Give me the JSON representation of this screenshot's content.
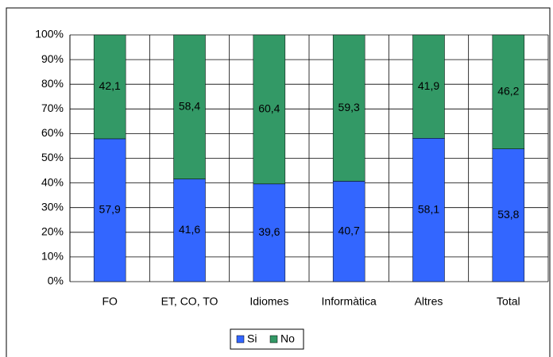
{
  "chart_data": {
    "type": "stacked_bar_100",
    "categories": [
      "FO",
      "ET, CO, TO",
      "Idiomes",
      "Informàtica",
      "Altres",
      "Total"
    ],
    "series": [
      {
        "name": "Si",
        "color": "#3366ff",
        "values": [
          57.9,
          41.6,
          39.6,
          40.7,
          58.1,
          53.8
        ],
        "value_labels": [
          "57,9",
          "41,6",
          "39,6",
          "40,7",
          "58,1",
          "53,8"
        ]
      },
      {
        "name": "No",
        "color": "#339966",
        "values": [
          42.1,
          58.4,
          60.4,
          59.3,
          41.9,
          46.2
        ],
        "value_labels": [
          "42,1",
          "58,4",
          "60,4",
          "59,3",
          "41,9",
          "46,2"
        ]
      }
    ],
    "ylim": [
      0,
      100
    ],
    "yticks": [
      {
        "value": 0,
        "label": "0%"
      },
      {
        "value": 10,
        "label": "10%"
      },
      {
        "value": 20,
        "label": "20%"
      },
      {
        "value": 30,
        "label": "30%"
      },
      {
        "value": 40,
        "label": "40%"
      },
      {
        "value": 50,
        "label": "50%"
      },
      {
        "value": 60,
        "label": "60%"
      },
      {
        "value": 70,
        "label": "70%"
      },
      {
        "value": 80,
        "label": "80%"
      },
      {
        "value": 90,
        "label": "90%"
      },
      {
        "value": 100,
        "label": "100%"
      }
    ],
    "grid": true,
    "legend": "bottom"
  }
}
